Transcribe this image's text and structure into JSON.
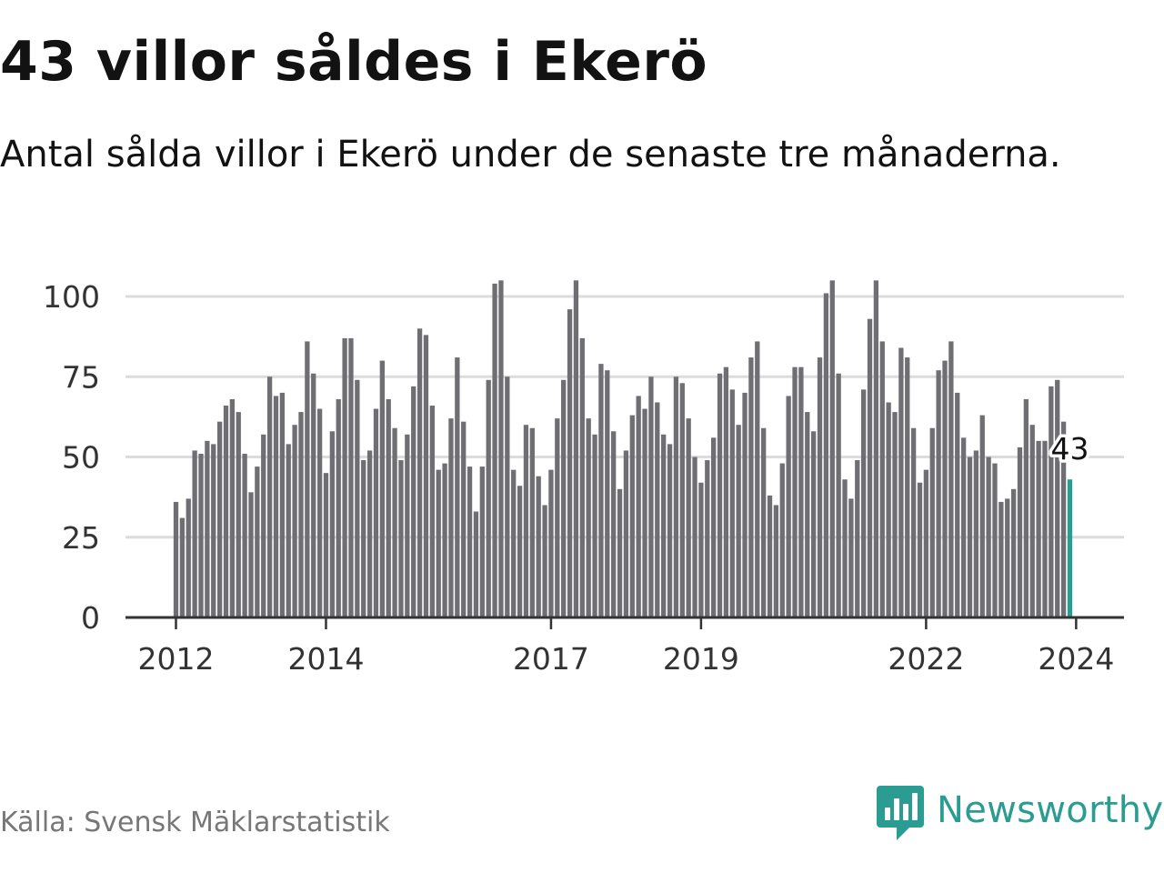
{
  "header": {
    "title": "43 villor såldes i Ekerö",
    "subtitle": "Antal sålda villor i Ekerö under de senaste tre månaderna."
  },
  "footer": {
    "source": "Källa: Svensk Mäklarstatistik",
    "brand": "Newsworthy",
    "brand_color": "#2b9c92"
  },
  "chart_data": {
    "type": "bar",
    "title": "43 villor såldes i Ekerö",
    "xlabel": "",
    "ylabel": "",
    "ylim": [
      0,
      105
    ],
    "yticks": [
      0,
      25,
      50,
      75,
      100
    ],
    "xtick_labels": [
      {
        "label": "2012",
        "index": 0
      },
      {
        "label": "2014",
        "index": 24
      },
      {
        "label": "2017",
        "index": 60
      },
      {
        "label": "2019",
        "index": 84
      },
      {
        "label": "2022",
        "index": 120
      },
      {
        "label": "2024",
        "index": 144
      }
    ],
    "bar_color": "#6f6e72",
    "highlight_color": "#2b9c92",
    "highlight_label": "43",
    "grid": true,
    "values": [
      36,
      31,
      37,
      52,
      51,
      55,
      54,
      61,
      66,
      68,
      64,
      51,
      39,
      47,
      57,
      75,
      69,
      70,
      54,
      60,
      64,
      86,
      76,
      65,
      45,
      58,
      68,
      87,
      87,
      74,
      49,
      52,
      65,
      80,
      68,
      59,
      49,
      57,
      72,
      90,
      88,
      66,
      46,
      48,
      62,
      81,
      61,
      47,
      33,
      47,
      74,
      104,
      105,
      75,
      46,
      41,
      60,
      59,
      44,
      35,
      46,
      62,
      74,
      96,
      105,
      87,
      62,
      57,
      79,
      77,
      58,
      40,
      52,
      63,
      69,
      65,
      75,
      67,
      57,
      54,
      75,
      73,
      62,
      50,
      42,
      49,
      56,
      76,
      78,
      71,
      60,
      70,
      81,
      86,
      59,
      38,
      35,
      48,
      69,
      78,
      78,
      64,
      58,
      81,
      101,
      105,
      76,
      43,
      37,
      49,
      71,
      93,
      105,
      86,
      67,
      64,
      84,
      81,
      59,
      42,
      46,
      59,
      77,
      80,
      86,
      70,
      56,
      50,
      52,
      63,
      50,
      48,
      36,
      37,
      40,
      53,
      68,
      60,
      55,
      55,
      72,
      74,
      61,
      43
    ]
  }
}
